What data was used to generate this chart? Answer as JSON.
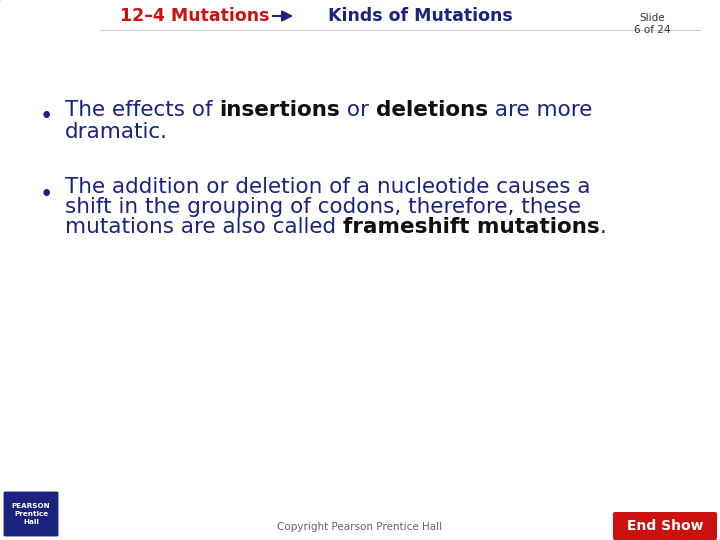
{
  "title1": "12–4 Mutations",
  "title1_color": "#cc1111",
  "title2": "Kinds of Mutations",
  "title2_color": "#1a237e",
  "title_fontsize": 12.5,
  "bg_color": "#ffffff",
  "bullet_color": "#1a237e",
  "bullet_bold_color": "#111111",
  "bullet_fontsize": 15.5,
  "b1_line1_parts": [
    [
      "The effects of ",
      false
    ],
    [
      "insertions",
      true
    ],
    [
      " or ",
      false
    ],
    [
      "deletions",
      true
    ],
    [
      " are more",
      false
    ]
  ],
  "b1_line2": "dramatic.",
  "b2_line1": "The addition or deletion of a nucleotide causes a",
  "b2_line2": "shift in the grouping of codons, therefore, these",
  "b2_line3_parts": [
    [
      "mutations are also called ",
      false
    ],
    [
      "frameshift mutations",
      true
    ],
    [
      ".",
      false
    ]
  ],
  "corner_color": "#1a5bb5",
  "pearson_bg": "#1a237e",
  "copyright_text": "Copyright Pearson Prentice Hall",
  "slide_text": "Slide\n6 of 24",
  "endshow_text": "End Show",
  "endshow_bg": "#cc1111",
  "endshow_color": "#ffffff",
  "header_line_color": "#cccccc"
}
